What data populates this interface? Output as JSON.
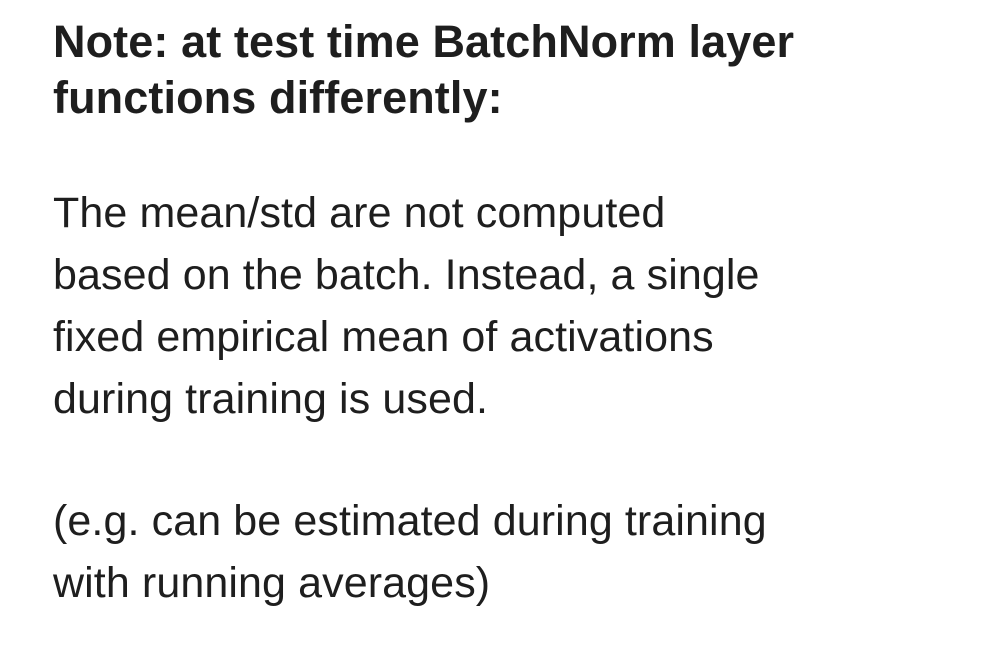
{
  "slide": {
    "heading_lines": [
      "Note: at test time BatchNorm layer",
      "functions differently:"
    ],
    "paragraph1_lines": [
      "The mean/std are not computed",
      "based on the batch. Instead, a single",
      "fixed empirical mean of activations",
      "during training is used."
    ],
    "paragraph2_lines": [
      "(e.g. can be estimated during training",
      "with running averages)"
    ]
  }
}
